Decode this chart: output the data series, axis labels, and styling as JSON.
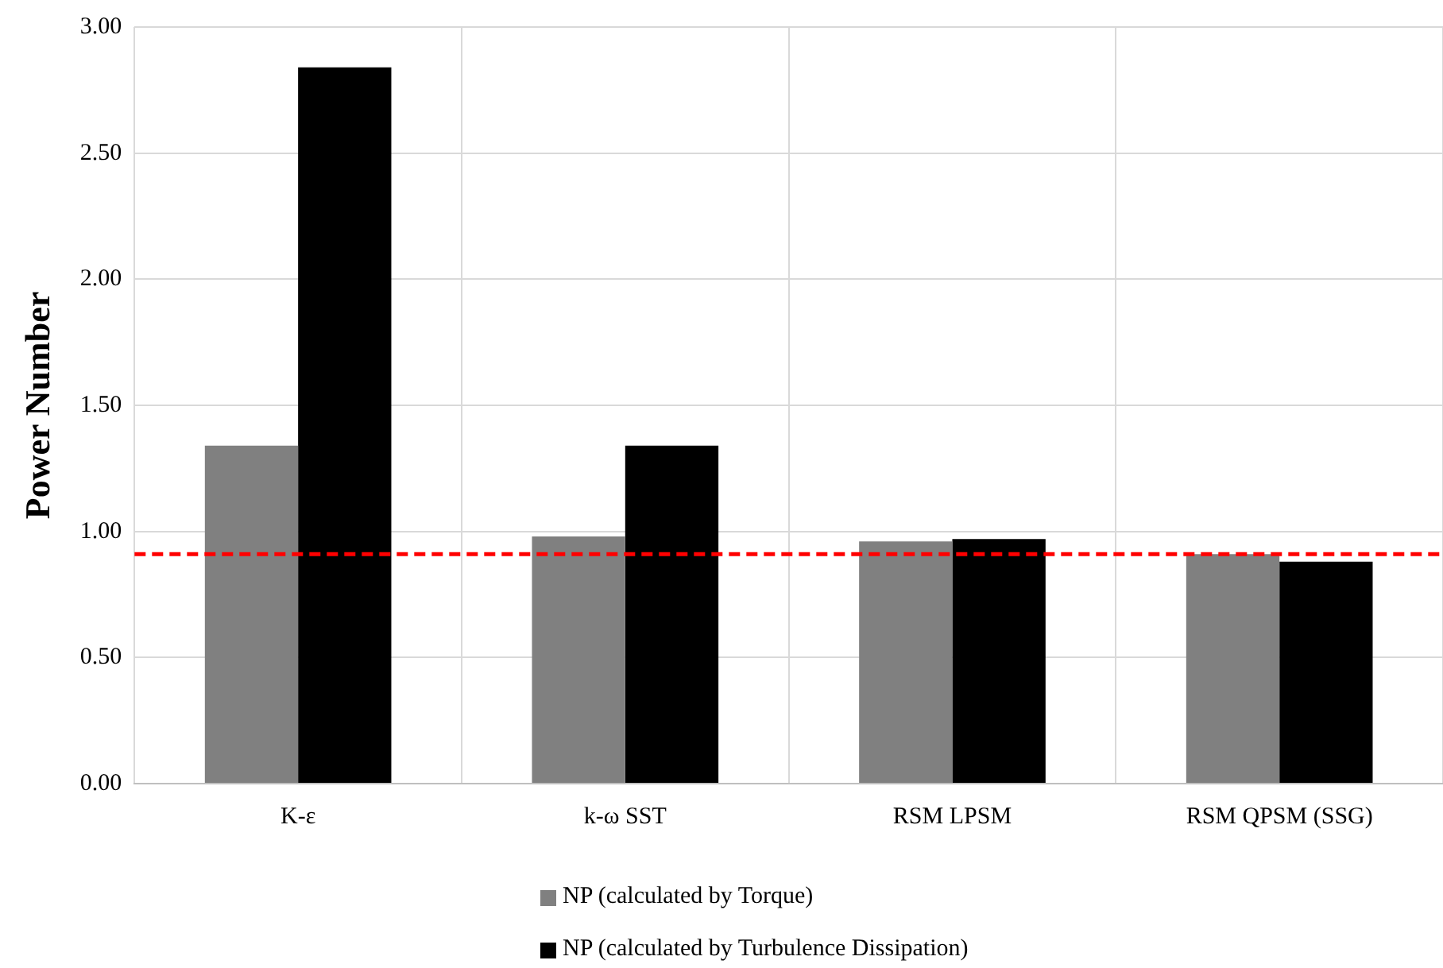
{
  "chart_data": {
    "type": "bar",
    "ylabel": "Power Number",
    "categories": [
      "K-ε",
      "k-ω SST",
      "RSM LPSM",
      "RSM QPSM (SSG)"
    ],
    "series": [
      {
        "name": "NP (calculated by Torque)",
        "color": "#808080",
        "values": [
          1.34,
          0.98,
          0.96,
          0.91
        ]
      },
      {
        "name": "NP (calculated by Turbulence Dissipation)",
        "color": "#000000",
        "values": [
          2.84,
          1.34,
          0.97,
          0.88
        ]
      }
    ],
    "ylim": [
      0,
      3
    ],
    "yticks": [
      {
        "value": 0,
        "label": "0.00"
      },
      {
        "value": 0.5,
        "label": "0.50"
      },
      {
        "value": 1,
        "label": "1.00"
      },
      {
        "value": 1.5,
        "label": "1.50"
      },
      {
        "value": 2,
        "label": "2.00"
      },
      {
        "value": 2.5,
        "label": "2.50"
      },
      {
        "value": 3,
        "label": "3.00"
      }
    ],
    "grid": true,
    "legend": "bottom",
    "ref_lines": [
      {
        "axis": "y",
        "value": 0.91,
        "color": "#ff0000",
        "line_style": "dashed"
      }
    ]
  }
}
